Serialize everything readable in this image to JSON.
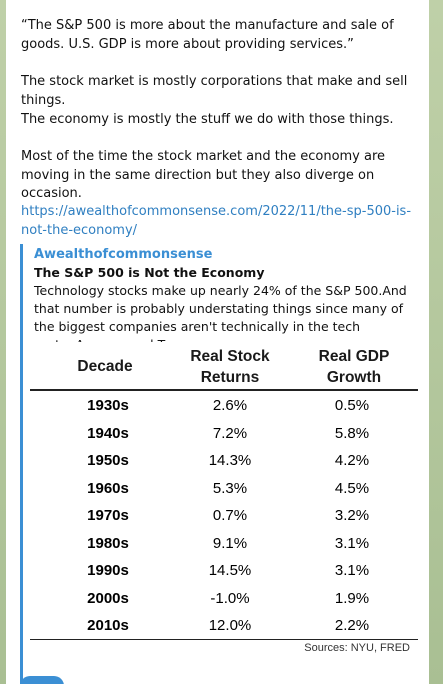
{
  "message": {
    "quote": "“The S&P 500 is more about the manufacture and sale of goods. U.S. GDP is more about providing services.”",
    "line1": "The stock market is mostly corporations that make and sell things.",
    "line2": "The economy is mostly the stuff we do with those things.",
    "line3": "Most of the time the stock market and the economy are moving in the same direction but they also diverge on occasion.",
    "url": "https://awealthofcommonsense.com/2022/11/the-sp-500-is-not-the-economy/"
  },
  "preview": {
    "site": "Awealthofcommonsense",
    "title": "The S&P 500 is Not the Economy",
    "description": "Technology stocks make up nearly 24% of the S&P 500.And that number is probably understating things since many of the biggest companies aren't technically in the tech sector.Amazon and Tes"
  },
  "table": {
    "headers": [
      "Decade",
      "Real Stock Returns",
      "Real GDP Growth"
    ],
    "rows": [
      [
        "1930s",
        "2.6%",
        "0.5%"
      ],
      [
        "1940s",
        "7.2%",
        "5.8%"
      ],
      [
        "1950s",
        "14.3%",
        "4.2%"
      ],
      [
        "1960s",
        "5.3%",
        "4.5%"
      ],
      [
        "1970s",
        "0.7%",
        "3.2%"
      ],
      [
        "1980s",
        "9.1%",
        "3.1%"
      ],
      [
        "1990s",
        "14.5%",
        "3.1%"
      ],
      [
        "2000s",
        "-1.0%",
        "1.9%"
      ],
      [
        "2010s",
        "12.0%",
        "2.2%"
      ]
    ],
    "source": "Sources: NYU, FRED"
  }
}
